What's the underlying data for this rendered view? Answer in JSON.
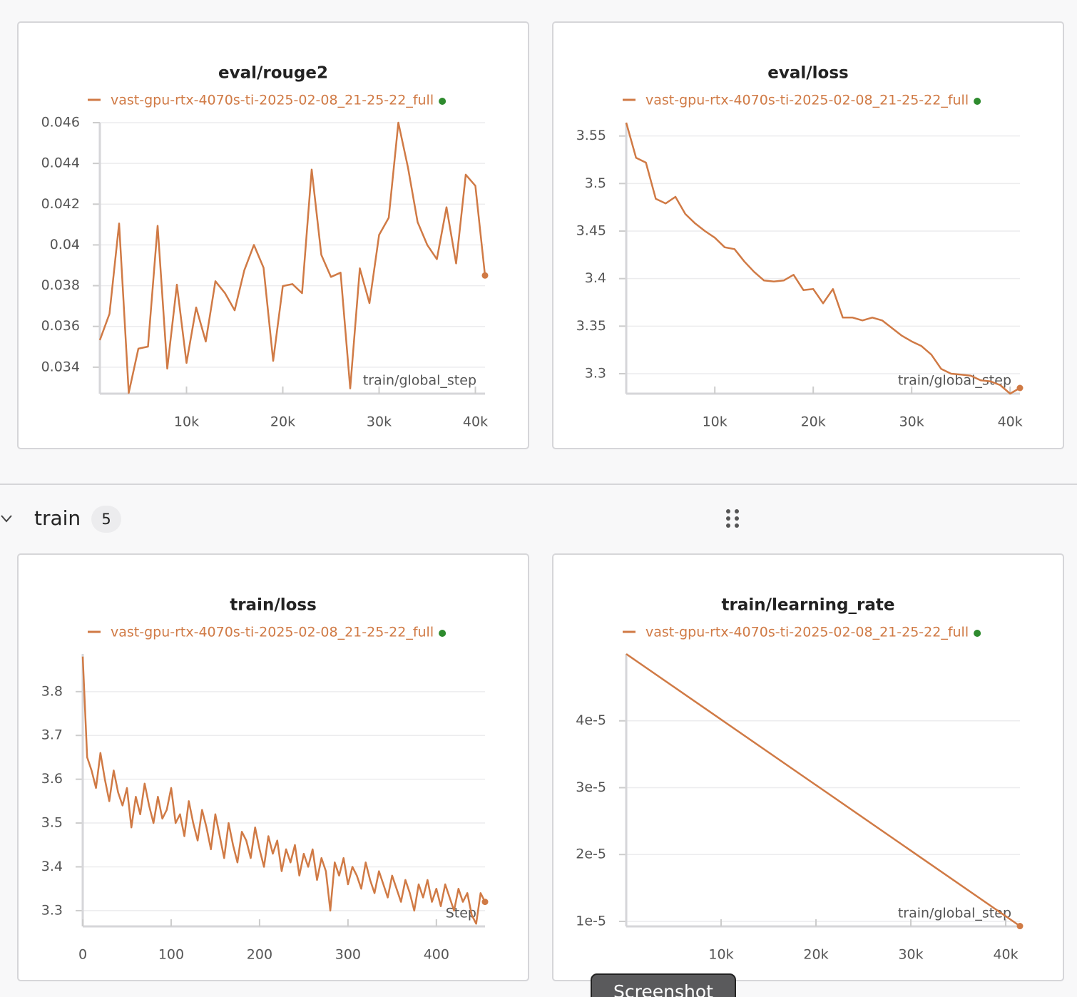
{
  "chart_data": [
    {
      "type": "line",
      "title": "eval/rouge2",
      "x_label": "train/global_step",
      "x": [
        1000,
        2000,
        3000,
        4000,
        5000,
        6000,
        7000,
        8000,
        9000,
        10000,
        11000,
        12000,
        13000,
        14000,
        15000,
        16000,
        17000,
        18000,
        19000,
        20000,
        21000,
        22000,
        23000,
        24000,
        25000,
        26000,
        27000,
        28000,
        29000,
        30000,
        31000,
        32000,
        33000,
        34000,
        35000,
        36000,
        37000,
        38000,
        39000,
        40000,
        41000
      ],
      "series": [
        {
          "name": "vast-gpu-rtx-4070s-ti-2025-02-08_21-25-22_full",
          "color": "#d07a45",
          "values": [
            0.03533,
            0.03662,
            0.04105,
            0.03274,
            0.03491,
            0.03501,
            0.04094,
            0.03393,
            0.03805,
            0.03421,
            0.03693,
            0.03526,
            0.03822,
            0.03763,
            0.03679,
            0.03875,
            0.04,
            0.03888,
            0.03431,
            0.03798,
            0.03808,
            0.03763,
            0.0437,
            0.03951,
            0.03843,
            0.03864,
            0.03296,
            0.03885,
            0.03714,
            0.04049,
            0.04133,
            0.046,
            0.0438,
            0.04112,
            0.04,
            0.0393,
            0.04185,
            0.03909,
            0.04345,
            0.0429,
            0.0385
          ]
        }
      ],
      "xlim": [
        1000,
        41000
      ],
      "ylim": [
        0.0327,
        0.046
      ],
      "xticks": [
        {
          "value": 10000,
          "label": "10k"
        },
        {
          "value": 20000,
          "label": "20k"
        },
        {
          "value": 30000,
          "label": "30k"
        },
        {
          "value": 40000,
          "label": "40k"
        }
      ],
      "yticks": [
        0.034,
        0.036,
        0.038,
        0.04,
        0.042,
        0.044,
        0.046
      ],
      "grid": true
    },
    {
      "type": "line",
      "title": "eval/loss",
      "x_label": "train/global_step",
      "x": [
        1000,
        2000,
        3000,
        4000,
        5000,
        6000,
        7000,
        8000,
        9000,
        10000,
        11000,
        12000,
        13000,
        14000,
        15000,
        16000,
        17000,
        18000,
        19000,
        20000,
        21000,
        22000,
        23000,
        24000,
        25000,
        26000,
        27000,
        28000,
        29000,
        30000,
        31000,
        32000,
        33000,
        34000,
        35000,
        36000,
        37000,
        38000,
        39000,
        40000,
        41000
      ],
      "series": [
        {
          "name": "vast-gpu-rtx-4070s-ti-2025-02-08_21-25-22_full",
          "color": "#d07a45",
          "values": [
            3.564,
            3.527,
            3.522,
            3.484,
            3.479,
            3.486,
            3.468,
            3.458,
            3.45,
            3.443,
            3.433,
            3.431,
            3.418,
            3.407,
            3.398,
            3.397,
            3.398,
            3.404,
            3.388,
            3.389,
            3.374,
            3.389,
            3.359,
            3.359,
            3.356,
            3.359,
            3.356,
            3.348,
            3.34,
            3.334,
            3.329,
            3.32,
            3.305,
            3.3,
            3.299,
            3.298,
            3.293,
            3.292,
            3.288,
            3.279,
            3.285
          ]
        }
      ],
      "xlim": [
        1000,
        41000
      ],
      "ylim": [
        3.279,
        3.564
      ],
      "xticks": [
        {
          "value": 10000,
          "label": "10k"
        },
        {
          "value": 20000,
          "label": "20k"
        },
        {
          "value": 30000,
          "label": "30k"
        },
        {
          "value": 40000,
          "label": "40k"
        }
      ],
      "yticks": [
        3.3,
        3.35,
        3.4,
        3.45,
        3.5,
        3.55
      ],
      "grid": true
    },
    {
      "type": "line",
      "title": "train/loss",
      "x_label": "Step",
      "x": [
        0,
        5,
        10,
        15,
        20,
        25,
        30,
        35,
        40,
        45,
        50,
        55,
        60,
        65,
        70,
        75,
        80,
        85,
        90,
        95,
        100,
        105,
        110,
        115,
        120,
        125,
        130,
        135,
        140,
        145,
        150,
        155,
        160,
        165,
        170,
        175,
        180,
        185,
        190,
        195,
        200,
        205,
        210,
        215,
        220,
        225,
        230,
        235,
        240,
        245,
        250,
        255,
        260,
        265,
        270,
        275,
        280,
        285,
        290,
        295,
        300,
        305,
        310,
        315,
        320,
        325,
        330,
        335,
        340,
        345,
        350,
        355,
        360,
        365,
        370,
        375,
        380,
        385,
        390,
        395,
        400,
        405,
        410,
        415,
        420,
        425,
        430,
        435,
        440,
        445,
        450,
        455
      ],
      "series": [
        {
          "name": "vast-gpu-rtx-4070s-ti-2025-02-08_21-25-22_full",
          "color": "#d07a45",
          "values": [
            3.88,
            3.65,
            3.62,
            3.58,
            3.66,
            3.6,
            3.55,
            3.62,
            3.57,
            3.54,
            3.58,
            3.49,
            3.56,
            3.52,
            3.59,
            3.54,
            3.5,
            3.56,
            3.51,
            3.53,
            3.58,
            3.5,
            3.52,
            3.47,
            3.55,
            3.5,
            3.46,
            3.53,
            3.49,
            3.44,
            3.52,
            3.47,
            3.42,
            3.5,
            3.45,
            3.41,
            3.48,
            3.46,
            3.42,
            3.49,
            3.44,
            3.4,
            3.47,
            3.43,
            3.46,
            3.39,
            3.44,
            3.41,
            3.45,
            3.38,
            3.43,
            3.4,
            3.44,
            3.37,
            3.42,
            3.39,
            3.3,
            3.41,
            3.38,
            3.42,
            3.36,
            3.4,
            3.38,
            3.35,
            3.41,
            3.37,
            3.34,
            3.39,
            3.36,
            3.33,
            3.38,
            3.35,
            3.32,
            3.37,
            3.34,
            3.3,
            3.36,
            3.33,
            3.37,
            3.32,
            3.35,
            3.31,
            3.36,
            3.33,
            3.3,
            3.35,
            3.32,
            3.34,
            3.29,
            3.27,
            3.34,
            3.32
          ]
        }
      ],
      "xlim": [
        0,
        455
      ],
      "ylim": [
        3.264,
        3.886
      ],
      "xticks": [
        0,
        100,
        200,
        300,
        400
      ],
      "yticks": [
        3.3,
        3.4,
        3.5,
        3.6,
        3.7,
        3.8
      ],
      "grid": true
    },
    {
      "type": "line",
      "title": "train/learning_rate",
      "x_label": "train/global_step",
      "x": [
        0,
        41500
      ],
      "series": [
        {
          "name": "vast-gpu-rtx-4070s-ti-2025-02-08_21-25-22_full",
          "color": "#d07a45",
          "values": [
            5e-05,
            9.3e-06
          ]
        }
      ],
      "xlim": [
        0,
        41500
      ],
      "ylim": [
        9.25e-06,
        5e-05
      ],
      "xticks": [
        {
          "value": 10000,
          "label": "10k"
        },
        {
          "value": 20000,
          "label": "20k"
        },
        {
          "value": 30000,
          "label": "30k"
        },
        {
          "value": 40000,
          "label": "40k"
        }
      ],
      "yticks": [
        {
          "value": 1e-05,
          "label": "1e-5"
        },
        {
          "value": 2e-05,
          "label": "2e-5"
        },
        {
          "value": 3e-05,
          "label": "3e-5"
        },
        {
          "value": 4e-05,
          "label": "4e-5"
        }
      ],
      "grid": true
    }
  ],
  "section": {
    "title": "train",
    "count": 5
  },
  "button": "Screenshot"
}
